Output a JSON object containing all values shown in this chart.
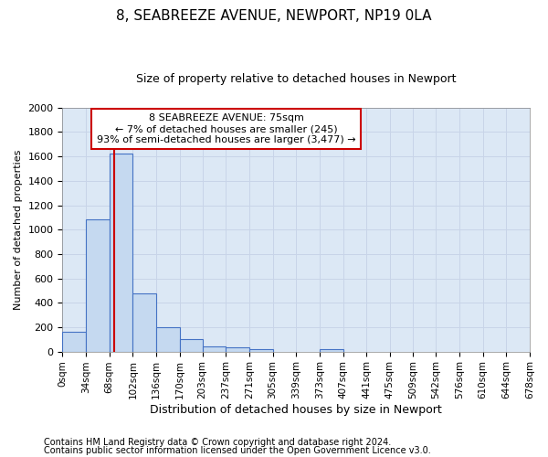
{
  "title_line1": "8, SEABREEZE AVENUE, NEWPORT, NP19 0LA",
  "title_line2": "Size of property relative to detached houses in Newport",
  "xlabel": "Distribution of detached houses by size in Newport",
  "ylabel": "Number of detached properties",
  "footnote1": "Contains HM Land Registry data © Crown copyright and database right 2024.",
  "footnote2": "Contains public sector information licensed under the Open Government Licence v3.0.",
  "annotation_line1": "8 SEABREEZE AVENUE: 75sqm",
  "annotation_line2": "← 7% of detached houses are smaller (245)",
  "annotation_line3": "93% of semi-detached houses are larger (3,477) →",
  "bin_edges": [
    0,
    34,
    68,
    102,
    136,
    170,
    203,
    237,
    271,
    305,
    339,
    373,
    407,
    441,
    475,
    509,
    542,
    576,
    610,
    644,
    678
  ],
  "bar_heights": [
    165,
    1085,
    1625,
    480,
    200,
    100,
    45,
    35,
    22,
    0,
    0,
    20,
    0,
    0,
    0,
    0,
    0,
    0,
    0,
    0
  ],
  "bar_color": "#c5d9f0",
  "bar_edge_color": "#4472c4",
  "red_line_x": 75,
  "ylim": [
    0,
    2000
  ],
  "xlim": [
    0,
    678
  ],
  "yticks": [
    0,
    200,
    400,
    600,
    800,
    1000,
    1200,
    1400,
    1600,
    1800,
    2000
  ],
  "xtick_labels": [
    "0sqm",
    "34sqm",
    "68sqm",
    "102sqm",
    "136sqm",
    "170sqm",
    "203sqm",
    "237sqm",
    "271sqm",
    "305sqm",
    "339sqm",
    "373sqm",
    "407sqm",
    "441sqm",
    "475sqm",
    "509sqm",
    "542sqm",
    "576sqm",
    "610sqm",
    "644sqm",
    "678sqm"
  ],
  "grid_color": "#c8d4e8",
  "background_color": "#dce8f5",
  "annotation_box_color": "#ffffff",
  "annotation_box_edge": "#cc0000",
  "red_line_color": "#cc0000",
  "title_fontsize": 11,
  "subtitle_fontsize": 9,
  "ylabel_fontsize": 8,
  "xlabel_fontsize": 9,
  "footnote_fontsize": 7,
  "ytick_fontsize": 8,
  "xtick_fontsize": 7.5
}
